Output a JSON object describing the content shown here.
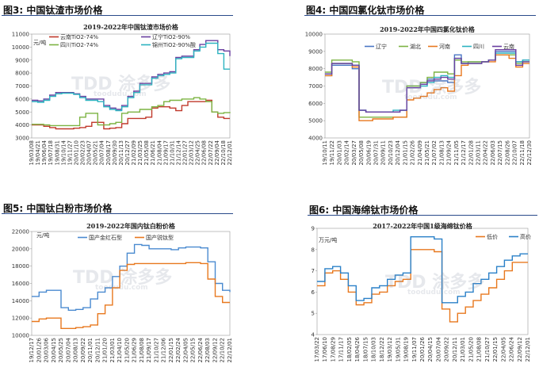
{
  "panels": [
    {
      "fig_label": "图3:",
      "fig_title": "中国钛渣市场价格"
    },
    {
      "fig_label": "图4:",
      "fig_title": "中国四氯化钛市场价格"
    },
    {
      "fig_label": "图5:",
      "fig_title": "中国钛白粉市场价格"
    },
    {
      "fig_label": "图6:",
      "fig_title": "中国海绵钛市场价格"
    }
  ],
  "watermark": {
    "logo": "TDD 涂多多",
    "site": "toodudu.com"
  },
  "chart_data": [
    {
      "type": "line",
      "title": "2019-2022年中国钛渣市场价格",
      "unit": "元/吨",
      "ylim": [
        3000,
        11000
      ],
      "yticks": [
        3000,
        4000,
        5000,
        6000,
        7000,
        8000,
        9000,
        10000,
        11000
      ],
      "xticks": [
        "19/03/08",
        "19/04/21",
        "19/06/04",
        "19/07/18",
        "19/08/31",
        "19/10/14",
        "19/11/27",
        "20/01/10",
        "20/02/23",
        "20/04/07",
        "20/05/21",
        "20/07/04",
        "20/08/17",
        "20/09/30",
        "20/11/13",
        "20/12/27",
        "21/02/09",
        "21/03/25",
        "21/05/08",
        "21/06/21",
        "21/08/04",
        "21/09/17",
        "21/10/31",
        "21/12/14",
        "22/01/27",
        "22/03/12",
        "22/04/25",
        "22/06/08",
        "22/07/22",
        "22/09/04",
        "22/10/18",
        "22/12/01"
      ],
      "legend_position": "top-left",
      "series": [
        {
          "name": "云南TiO2-74%",
          "color": "#c0392b",
          "values": [
            4000,
            4000,
            3900,
            3800,
            3700,
            3700,
            3700,
            3750,
            3800,
            3900,
            4200,
            4200,
            3700,
            3750,
            3800,
            4100,
            4500,
            4500,
            4500,
            4600,
            5300,
            5400,
            5400,
            5300,
            5100,
            5500,
            5800,
            5800,
            5800,
            5900,
            5000,
            4600,
            4500,
            4500
          ]
        },
        {
          "name": "四川TiO2-74%",
          "color": "#7cb342",
          "values": [
            4050,
            4050,
            4000,
            3950,
            3950,
            3950,
            3950,
            3950,
            4600,
            4900,
            4900,
            4000,
            4000,
            4100,
            4200,
            4900,
            5000,
            5000,
            5200,
            5200,
            5400,
            5500,
            5800,
            5900,
            5900,
            6000,
            6000,
            6100,
            6000,
            5800,
            5000,
            4900,
            4950,
            5000
          ]
        },
        {
          "name": "辽宁TiO2-90%",
          "color": "#6a3fa0",
          "values": [
            5900,
            5850,
            6000,
            6300,
            6500,
            6500,
            6500,
            6400,
            6200,
            6000,
            6000,
            6000,
            5500,
            5300,
            5200,
            5500,
            6200,
            6600,
            7200,
            7200,
            7700,
            7900,
            8000,
            8100,
            9200,
            9300,
            9300,
            9800,
            10200,
            10500,
            10500,
            9800,
            9700,
            9300
          ]
        },
        {
          "name": "锦州TiO2-90%酸",
          "color": "#2bb3c0",
          "values": [
            5800,
            5750,
            5900,
            6200,
            6400,
            6450,
            6450,
            6350,
            6100,
            5900,
            5900,
            5800,
            5400,
            5200,
            5100,
            5400,
            6100,
            6500,
            7100,
            7100,
            7600,
            7800,
            7900,
            8000,
            9100,
            9200,
            9200,
            9700,
            10000,
            10300,
            10300,
            9500,
            8300,
            8300
          ]
        }
      ]
    },
    {
      "type": "line",
      "title": "2019-2022年中国四氯化钛价格",
      "unit": "",
      "ylim": [
        4000,
        10000
      ],
      "yticks": [
        4000,
        5000,
        6000,
        7000,
        8000,
        9000,
        10000
      ],
      "xticks": [
        "19/10/11",
        "19/11/22",
        "20/01/03",
        "20/02/14",
        "20/03/27",
        "20/05/08",
        "20/06/19",
        "20/07/31",
        "20/09/11",
        "20/10/23",
        "20/12/04",
        "21/01/15",
        "21/02/26",
        "21/04/09",
        "21/05/21",
        "21/07/02",
        "21/08/13",
        "21/09/24",
        "21/11/05",
        "21/12/17",
        "22/01/28",
        "22/03/11",
        "22/04/22",
        "22/06/03",
        "22/07/15",
        "22/08/26",
        "22/10/07",
        "22/11/18",
        "22/12/30"
      ],
      "legend_position": "top",
      "series": [
        {
          "name": "辽宁",
          "color": "#4a76c4",
          "values": [
            7600,
            8200,
            8200,
            8200,
            8000,
            5600,
            5500,
            5500,
            5500,
            5500,
            5500,
            5600,
            7000,
            7000,
            7200,
            7400,
            7300,
            7300,
            7200,
            8800,
            8300,
            8400,
            8400,
            8400,
            8500,
            9000,
            9000,
            9000,
            8400,
            8500,
            8500
          ]
        },
        {
          "name": "湖北",
          "color": "#7cb342",
          "values": [
            7800,
            8500,
            8500,
            8500,
            8400,
            5200,
            5200,
            5200,
            5200,
            5200,
            5200,
            5200,
            7000,
            7000,
            7200,
            7500,
            7800,
            7800,
            7700,
            8500,
            8400,
            8400,
            8400,
            8400,
            8500,
            8800,
            8800,
            8800,
            8300,
            8400,
            8400
          ]
        },
        {
          "name": "河南",
          "color": "#e8781e",
          "values": [
            7600,
            8300,
            8300,
            8300,
            8100,
            5000,
            5000,
            5100,
            5100,
            5100,
            5200,
            5200,
            6200,
            6300,
            6400,
            6600,
            6800,
            6900,
            6700,
            7600,
            8200,
            8300,
            8300,
            8400,
            8400,
            8800,
            8800,
            8600,
            8100,
            8300,
            8300
          ]
        },
        {
          "name": "四川",
          "color": "#2bb3c0",
          "values": [
            7700,
            8300,
            8300,
            8300,
            8200,
            5600,
            5500,
            5500,
            5500,
            5500,
            5600,
            5600,
            6900,
            6900,
            7000,
            7200,
            7500,
            7600,
            7500,
            8600,
            8300,
            8300,
            8300,
            8400,
            8500,
            8900,
            8900,
            8900,
            8400,
            8500,
            8500
          ]
        },
        {
          "name": "云南",
          "color": "#6a3fa0",
          "values": [
            7700,
            8300,
            8300,
            8300,
            8200,
            5600,
            5500,
            5500,
            5500,
            5500,
            5500,
            5600,
            6900,
            6900,
            7100,
            7300,
            7400,
            7500,
            7400,
            8600,
            8300,
            8300,
            8300,
            8400,
            8500,
            9100,
            9100,
            9100,
            8200,
            8400,
            8400
          ]
        }
      ]
    },
    {
      "type": "line",
      "title": "2019-2022年国内钛白粉价格",
      "unit": "元/吨",
      "ylim": [
        10000,
        22000
      ],
      "yticks": [
        10000,
        12000,
        14000,
        16000,
        18000,
        20000,
        22000
      ],
      "xticks": [
        "19/12/17",
        "20/01/26",
        "20/03/06",
        "20/04/15",
        "20/05/25",
        "20/07/04",
        "20/08/13",
        "20/09/22",
        "20/11/01",
        "20/12/11",
        "21/01/20",
        "21/03/01",
        "21/04/10",
        "21/05/20",
        "21/06/29",
        "21/08/08",
        "21/09/17",
        "21/10/27",
        "21/12/06",
        "22/01/15",
        "22/02/24",
        "22/04/05",
        "22/05/15",
        "22/06/24",
        "22/08/03",
        "22/09/12",
        "22/10/22",
        "22/12/01"
      ],
      "legend_position": "top-left",
      "series": [
        {
          "name": "国产金红石型",
          "color": "#4a8ad0",
          "values": [
            14500,
            15000,
            15200,
            15200,
            13200,
            12900,
            13000,
            13200,
            14200,
            15000,
            15500,
            16800,
            18000,
            19500,
            20500,
            20400,
            20000,
            20000,
            20000,
            19900,
            20100,
            20200,
            20200,
            20100,
            18500,
            16000,
            15200,
            15000
          ]
        },
        {
          "name": "国产锐钛型",
          "color": "#e8781e",
          "values": [
            11600,
            11900,
            12000,
            12000,
            10800,
            10800,
            10900,
            11000,
            11200,
            12500,
            13500,
            15500,
            17500,
            18200,
            18300,
            18300,
            18300,
            18300,
            18300,
            18300,
            18300,
            18400,
            18400,
            18300,
            16500,
            14500,
            13800,
            13800
          ]
        }
      ]
    },
    {
      "type": "line",
      "title": "2017-2022年中国1级海绵钛价格",
      "unit": "万元/吨",
      "ylim": [
        4,
        9
      ],
      "yticks": [
        4,
        5,
        6,
        7,
        8,
        9
      ],
      "xticks": [
        "17/03/22",
        "17/06/10",
        "17/08/29",
        "17/11/17",
        "18/02/05",
        "18/04/26",
        "18/07/15",
        "18/10/03",
        "18/12/22",
        "19/03/12",
        "19/05/31",
        "19/08/19",
        "19/11/07",
        "20/01/26",
        "20/04/15",
        "20/07/04",
        "20/09/22",
        "20/12/11",
        "21/03/01",
        "21/05/20",
        "21/08/08",
        "21/10/27",
        "22/01/15",
        "22/04/05",
        "22/06/24",
        "22/09/12",
        "22/12/01"
      ],
      "legend_position": "top-right",
      "series": [
        {
          "name": "低价",
          "color": "#e8781e",
          "values": [
            6.3,
            6.9,
            7.0,
            6.6,
            6.0,
            5.4,
            5.5,
            5.9,
            6.0,
            6.3,
            6.5,
            6.6,
            8.0,
            8.0,
            8.0,
            7.9,
            5.2,
            4.6,
            5.0,
            5.3,
            5.6,
            5.9,
            6.2,
            6.6,
            7.0,
            7.4,
            7.4,
            7.4
          ]
        },
        {
          "name": "高价",
          "color": "#2a80c8",
          "values": [
            6.5,
            7.1,
            7.2,
            6.9,
            6.3,
            5.6,
            5.7,
            6.2,
            6.3,
            6.6,
            6.8,
            6.9,
            8.6,
            8.6,
            8.6,
            8.5,
            5.5,
            5.5,
            5.8,
            6.0,
            6.4,
            6.6,
            6.9,
            7.2,
            7.5,
            7.7,
            7.8,
            7.8
          ]
        }
      ]
    }
  ]
}
